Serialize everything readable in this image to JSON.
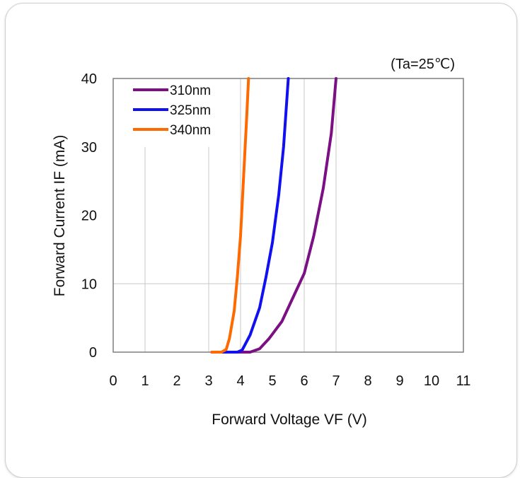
{
  "chart_data": {
    "type": "line",
    "annotation": "(Ta=25℃)",
    "xlabel": "Forward Voltage VF (V)",
    "ylabel": "Forward Current IF (mA)",
    "xlim": [
      0,
      11
    ],
    "ylim": [
      0,
      40
    ],
    "x_ticks": [
      "0",
      "1",
      "2",
      "3",
      "4",
      "5",
      "6",
      "7",
      "8",
      "9",
      "10",
      "11"
    ],
    "y_ticks": [
      "0",
      "10",
      "20",
      "30",
      "40"
    ],
    "grid": true,
    "legend_position": "top-left",
    "series": [
      {
        "name": "310nm",
        "color": "#7b0f83",
        "points": [
          [
            3.1,
            0
          ],
          [
            4.3,
            0
          ],
          [
            4.6,
            0.5
          ],
          [
            4.9,
            2
          ],
          [
            5.3,
            4.5
          ],
          [
            5.6,
            7.5
          ],
          [
            6.0,
            11.5
          ],
          [
            6.3,
            17
          ],
          [
            6.6,
            24
          ],
          [
            6.85,
            32
          ],
          [
            7.0,
            40
          ]
        ]
      },
      {
        "name": "325nm",
        "color": "#1010f0",
        "points": [
          [
            3.1,
            0
          ],
          [
            3.9,
            0
          ],
          [
            4.05,
            0.3
          ],
          [
            4.3,
            2.5
          ],
          [
            4.6,
            6.5
          ],
          [
            4.8,
            11
          ],
          [
            5.0,
            16
          ],
          [
            5.2,
            23
          ],
          [
            5.35,
            30
          ],
          [
            5.5,
            40
          ]
        ]
      },
      {
        "name": "340nm",
        "color": "#ff6a00",
        "points": [
          [
            3.1,
            0
          ],
          [
            3.4,
            0
          ],
          [
            3.55,
            0.4
          ],
          [
            3.65,
            2
          ],
          [
            3.8,
            6
          ],
          [
            3.9,
            11
          ],
          [
            4.0,
            17
          ],
          [
            4.1,
            26
          ],
          [
            4.2,
            35
          ],
          [
            4.25,
            40
          ]
        ]
      }
    ]
  }
}
